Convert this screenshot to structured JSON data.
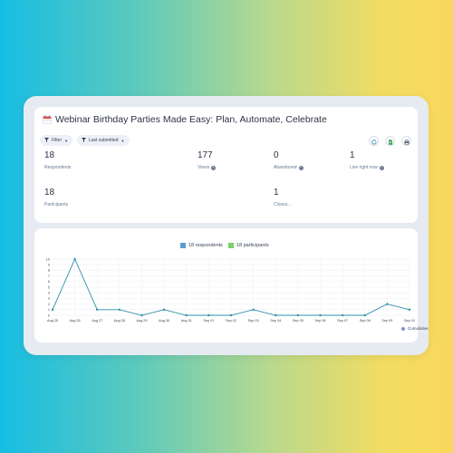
{
  "form": {
    "title": "Webinar Birthday Parties Made Easy: Plan, Automate, Celebrate",
    "icon": "calendar-icon"
  },
  "toolbar": {
    "filter_label": "Filter",
    "sort_label": "Last submitted",
    "refresh_icon": "refresh-icon",
    "sheet_icon": "spreadsheet-icon",
    "print_icon": "print-icon"
  },
  "stats": {
    "respondents": {
      "value": "18",
      "label": "Respondents"
    },
    "views": {
      "value": "177",
      "label": "Views"
    },
    "abandoned": {
      "value": "0",
      "label": "Abandoned"
    },
    "live_right_now": {
      "value": "1",
      "label": "Live right now"
    },
    "participants": {
      "value": "18",
      "label": "Participants"
    },
    "closes": {
      "value": "1",
      "label": "Closes..."
    }
  },
  "legend": {
    "respondents": "18 respondents",
    "participants": "18 participants",
    "cumulative": "Cumulative"
  },
  "colors": {
    "respondents": "#5b9bd5",
    "participants": "#7ccf6b",
    "line": "#2e8fa8",
    "cumulative": "#7f8fcb"
  },
  "chart_data": {
    "type": "line",
    "categories": [
      "Aug 25",
      "Aug 26",
      "Aug 27",
      "Aug 28",
      "Aug 29",
      "Aug 30",
      "Aug 31",
      "Sep 01",
      "Sep 02",
      "Sep 03",
      "Sep 04",
      "Sep 05",
      "Sep 06",
      "Sep 07",
      "Sep 08",
      "Sep 09",
      "Sep 10"
    ],
    "series": [
      {
        "name": "18 respondents",
        "values": [
          1,
          10,
          1,
          1,
          0,
          1,
          0,
          0,
          0,
          1,
          0,
          0,
          0,
          0,
          0,
          2,
          1
        ]
      }
    ],
    "y_ticks": [
      0,
      1,
      2,
      3,
      4,
      5,
      6,
      7,
      8,
      9,
      10
    ],
    "ylim": [
      0,
      10
    ],
    "grid": true,
    "legend_position": "top-center"
  }
}
